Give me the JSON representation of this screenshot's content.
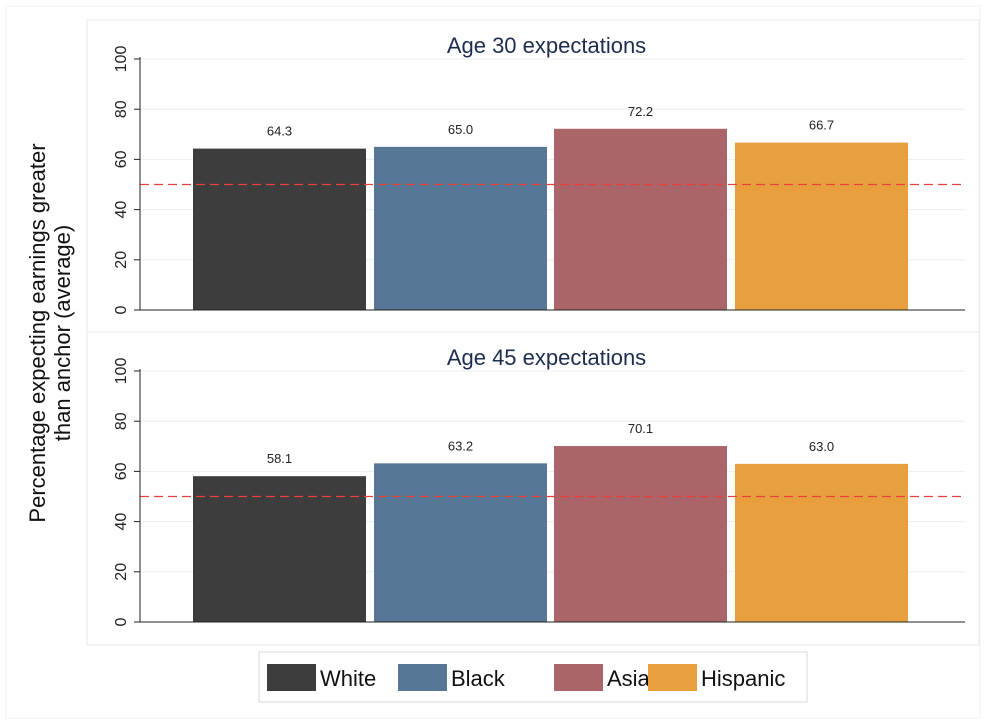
{
  "chart_data": {
    "type": "bar",
    "ylabel_lines": [
      "Percentage expecting earnings greater",
      "than anchor (average)"
    ],
    "categories": [
      "White",
      "Black",
      "Asian",
      "Hispanic"
    ],
    "colors": [
      "#3d3d3d",
      "#567796",
      "#ab6468",
      "#e8a03e"
    ],
    "reference_line": 50,
    "reference_line_color": "#e8403a",
    "ylim": [
      0,
      100
    ],
    "yticks": [
      0,
      20,
      40,
      60,
      80,
      100
    ],
    "grid": true,
    "legend_position": "bottom",
    "panels": [
      {
        "title": "Age 30 expectations",
        "values": [
          64.3,
          65.0,
          72.2,
          66.7
        ],
        "labels": [
          "64.3",
          "65.0",
          "72.2",
          "66.7"
        ]
      },
      {
        "title": "Age 45 expectations",
        "values": [
          58.1,
          63.2,
          70.1,
          63.0
        ],
        "labels": [
          "58.1",
          "63.2",
          "70.1",
          "63.0"
        ]
      }
    ]
  }
}
